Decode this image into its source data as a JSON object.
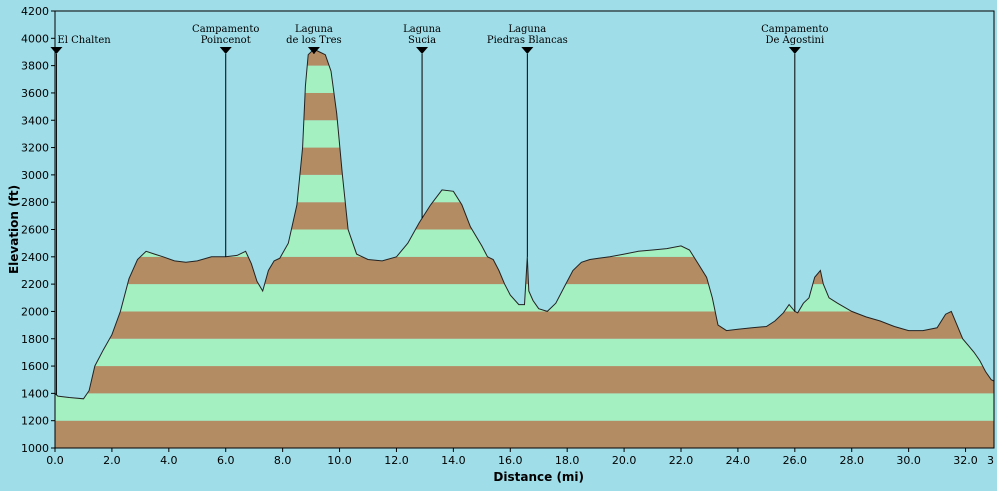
{
  "chart_data": {
    "type": "area",
    "title": "",
    "xlabel": "Distance (mi)",
    "ylabel": "Elevation (ft)",
    "xlim": [
      0,
      33
    ],
    "ylim": [
      1000,
      4200
    ],
    "x_ticks": [
      "0.0",
      "2.0",
      "4.0",
      "6.0",
      "8.0",
      "10.0",
      "12.0",
      "14.0",
      "16.0",
      "18.0",
      "20.0",
      "22.0",
      "24.0",
      "26.0",
      "28.0",
      "30.0",
      "32.0",
      "3"
    ],
    "y_ticks": [
      "1000",
      "1200",
      "1400",
      "1600",
      "1800",
      "2000",
      "2200",
      "2400",
      "2600",
      "2800",
      "3000",
      "3200",
      "3400",
      "3600",
      "3800",
      "4000",
      "4200"
    ],
    "band_interval": 200,
    "band_colors": {
      "light": "#a4f0c0",
      "dark": "#b48c64"
    },
    "grid": false,
    "legend": "none",
    "waypoints": [
      {
        "x": 0.05,
        "lines": [
          "El Chalten"
        ]
      },
      {
        "x": 6.0,
        "lines": [
          "Campamento",
          "Poincenot"
        ]
      },
      {
        "x": 9.1,
        "lines": [
          "Laguna",
          "de los Tres"
        ]
      },
      {
        "x": 12.9,
        "lines": [
          "Laguna",
          "Sucia"
        ]
      },
      {
        "x": 16.6,
        "lines": [
          "Laguna",
          "Piedras Blancas"
        ]
      },
      {
        "x": 26.0,
        "lines": [
          "Campamento",
          "De Agostini"
        ]
      }
    ],
    "series": [
      {
        "x": [
          0,
          0.1,
          0.5,
          1.0,
          1.2,
          1.4,
          1.7,
          2.0,
          2.3,
          2.6,
          2.9,
          3.2,
          3.5,
          3.8,
          4.2,
          4.6,
          5.0,
          5.5,
          6.0,
          6.4,
          6.7,
          6.9,
          7.1,
          7.3,
          7.5,
          7.7,
          7.9,
          8.2,
          8.5,
          8.7,
          8.8,
          8.9,
          9.1,
          9.3,
          9.5,
          9.7,
          9.9,
          10.1,
          10.3,
          10.6,
          11.0,
          11.5,
          12.0,
          12.4,
          12.8,
          13.2,
          13.6,
          14.0,
          14.3,
          14.6,
          15.0,
          15.2,
          15.4,
          15.6,
          15.8,
          16.0,
          16.3,
          16.5,
          16.6,
          16.65,
          16.8,
          17.0,
          17.3,
          17.6,
          17.9,
          18.2,
          18.5,
          18.8,
          19.1,
          19.5,
          20.0,
          20.5,
          21.0,
          21.5,
          22.0,
          22.3,
          22.6,
          22.9,
          23.1,
          23.3,
          23.6,
          24.0,
          24.5,
          25.0,
          25.3,
          25.6,
          25.8,
          26.0,
          26.1,
          26.3,
          26.5,
          26.7,
          26.9,
          27.0,
          27.2,
          27.5,
          28.0,
          28.5,
          29.0,
          29.5,
          30.0,
          30.5,
          31.0,
          31.3,
          31.5,
          31.7,
          31.9,
          32.1,
          32.3,
          32.5,
          32.7,
          32.9,
          33.0
        ],
        "y": [
          1400,
          1380,
          1370,
          1360,
          1420,
          1600,
          1720,
          1830,
          2000,
          2240,
          2380,
          2440,
          2420,
          2400,
          2370,
          2360,
          2370,
          2400,
          2400,
          2410,
          2440,
          2350,
          2220,
          2150,
          2300,
          2370,
          2390,
          2500,
          2780,
          3200,
          3650,
          3880,
          3920,
          3900,
          3880,
          3760,
          3450,
          3000,
          2600,
          2420,
          2380,
          2370,
          2400,
          2500,
          2650,
          2780,
          2890,
          2880,
          2780,
          2620,
          2480,
          2400,
          2380,
          2300,
          2200,
          2120,
          2050,
          2050,
          2400,
          2150,
          2080,
          2020,
          2000,
          2060,
          2180,
          2300,
          2360,
          2380,
          2390,
          2400,
          2420,
          2440,
          2450,
          2460,
          2480,
          2450,
          2350,
          2250,
          2100,
          1900,
          1860,
          1870,
          1880,
          1890,
          1930,
          1990,
          2050,
          2000,
          1990,
          2060,
          2100,
          2250,
          2300,
          2200,
          2100,
          2060,
          2000,
          1960,
          1930,
          1890,
          1860,
          1860,
          1880,
          1980,
          2000,
          1900,
          1800,
          1750,
          1700,
          1640,
          1560,
          1500,
          1490
        ]
      }
    ]
  }
}
